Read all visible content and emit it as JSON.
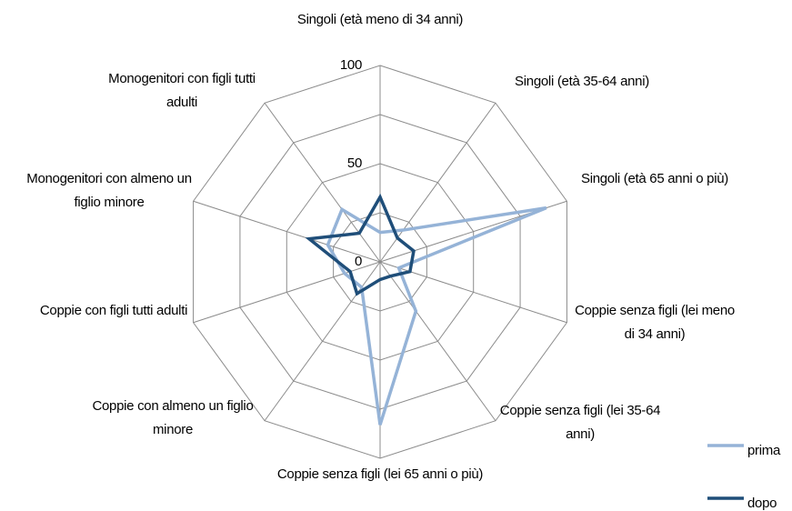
{
  "chart_data": {
    "type": "radar",
    "categories": [
      "Singoli (età meno di 34 anni)",
      "Singoli (età 35-64 anni)",
      "Singoli (età 65 anni o più)",
      "Coppie senza figli (lei meno di 34 anni)",
      "Coppie senza figli (lei 35-64 anni)",
      "Coppie senza figli (lei 65 anni o più)",
      "Coppie con almeno un figlio minore",
      "Coppie con figli tutti adulti",
      "Monogenitori con almeno un figlio minore",
      "Monogenitori con figli tutti adulti"
    ],
    "series": [
      {
        "name": "prima",
        "color": "#95b3d7",
        "values": [
          15,
          20,
          89,
          10,
          31,
          83,
          16,
          19,
          28,
          33
        ]
      },
      {
        "name": "dopo",
        "color": "#1f4e79",
        "values": [
          33,
          15,
          18,
          16,
          9,
          9,
          20,
          16,
          38,
          18
        ]
      }
    ],
    "rlim": [
      0,
      100
    ],
    "rticks": [
      0,
      50,
      100
    ],
    "grid_rings": [
      25,
      50,
      75,
      100
    ],
    "legend": "bottom-right"
  }
}
